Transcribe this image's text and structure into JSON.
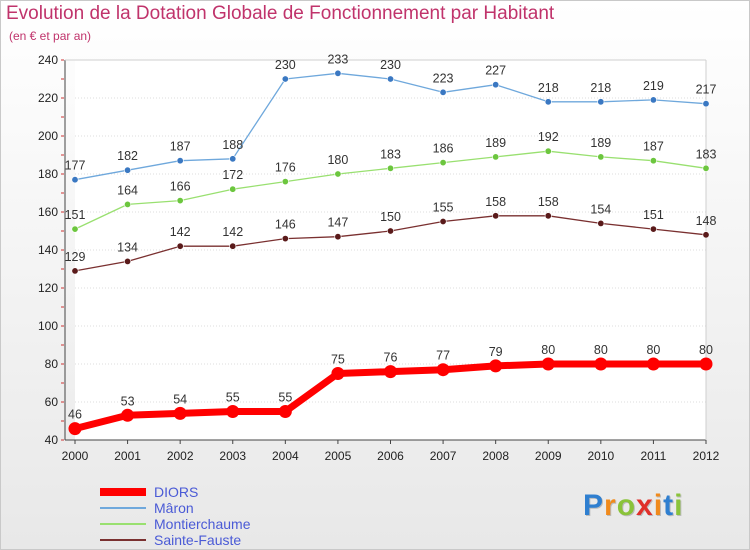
{
  "header": {
    "title": "Evolution de la Dotation Globale de Fonctionnement par Habitant",
    "subtitle": "(en € et par an)"
  },
  "logo": {
    "text": "Proxiti"
  },
  "chart_data": {
    "type": "line",
    "title": "Evolution de la Dotation Globale de Fonctionnement par Habitant",
    "subtitle": "(en € et par an)",
    "xlabel": "",
    "ylabel": "",
    "x": [
      "2000",
      "2001",
      "2002",
      "2003",
      "2004",
      "2005",
      "2006",
      "2007",
      "2008",
      "2009",
      "2010",
      "2011",
      "2012"
    ],
    "ylim": [
      40,
      240
    ],
    "yticks": [
      40,
      60,
      80,
      100,
      120,
      140,
      160,
      180,
      200,
      220,
      240
    ],
    "grid": "horizontal",
    "legend_position": "bottom-left",
    "series": [
      {
        "name": "DIORS",
        "color": "#ff0000",
        "emphasis": true,
        "values": [
          46,
          53,
          54,
          55,
          55,
          75,
          76,
          77,
          79,
          80,
          80,
          80,
          80
        ]
      },
      {
        "name": "Mâron",
        "color": "#6fa8dc",
        "marker": "#3a78c2",
        "values": [
          177,
          182,
          187,
          188,
          230,
          233,
          230,
          223,
          227,
          218,
          218,
          219,
          217
        ]
      },
      {
        "name": "Montierchaume",
        "color": "#99e070",
        "marker": "#6cc63e",
        "values": [
          151,
          164,
          166,
          172,
          176,
          180,
          183,
          186,
          189,
          192,
          189,
          187,
          183
        ]
      },
      {
        "name": "Sainte-Fauste",
        "color": "#7a3030",
        "marker": "#5a1a1a",
        "values": [
          129,
          134,
          142,
          142,
          146,
          147,
          150,
          155,
          158,
          158,
          154,
          151,
          148
        ]
      }
    ]
  }
}
